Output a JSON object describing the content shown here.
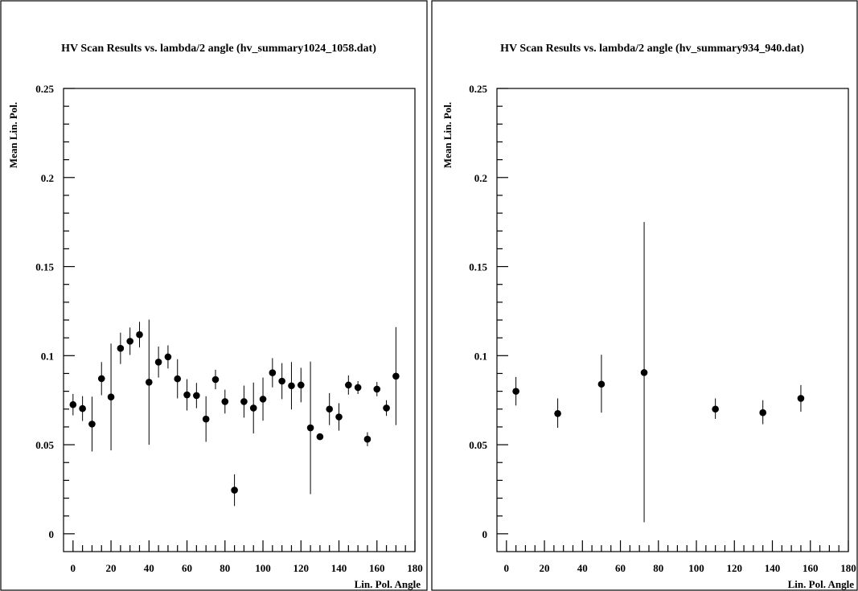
{
  "chart_data": [
    {
      "type": "scatter",
      "title": "HV Scan Results vs. lambda/2 angle (hv_summary1024_1058.dat)",
      "xlabel": "Lin. Pol. Angle",
      "ylabel": "Mean Lin. Pol.",
      "xlim": [
        -5,
        180
      ],
      "ylim": [
        -0.01,
        0.25
      ],
      "x_ticks": [
        0,
        20,
        40,
        60,
        80,
        100,
        120,
        140,
        160,
        180
      ],
      "y_ticks": [
        0,
        0.05,
        0.1,
        0.15,
        0.2,
        0.25
      ],
      "x_tick_labels": [
        "0",
        "20",
        "40",
        "60",
        "80",
        "100",
        "120",
        "140",
        "160",
        "180"
      ],
      "y_tick_labels": [
        "0",
        "0.05",
        "0.1",
        "0.15",
        "0.2",
        "0.25"
      ],
      "grid": false,
      "series": [
        {
          "x": [
            0,
            5,
            10,
            15,
            20,
            25,
            30,
            35,
            40,
            45,
            50,
            55,
            60,
            65,
            70,
            75,
            80,
            85,
            90,
            95,
            100,
            105,
            110,
            115,
            120,
            125,
            130,
            135,
            140,
            145,
            150,
            155,
            160,
            165,
            170
          ],
          "y": [
            0.0725,
            0.0703,
            0.0616,
            0.0871,
            0.0768,
            0.1041,
            0.1081,
            0.1118,
            0.0851,
            0.0964,
            0.0993,
            0.087,
            0.078,
            0.0776,
            0.0644,
            0.0866,
            0.0742,
            0.0245,
            0.0742,
            0.0706,
            0.0756,
            0.0904,
            0.0857,
            0.0831,
            0.0835,
            0.0595,
            0.0545,
            0.07,
            0.0656,
            0.0835,
            0.0821,
            0.0531,
            0.0812,
            0.0706,
            0.0885
          ],
          "y_low": [
            0.0665,
            0.0633,
            0.0462,
            0.0778,
            0.0468,
            0.0953,
            0.1004,
            0.1046,
            0.05,
            0.0877,
            0.0928,
            0.076,
            0.0692,
            0.0705,
            0.0516,
            0.0811,
            0.0675,
            0.0156,
            0.0652,
            0.0563,
            0.0635,
            0.0822,
            0.0756,
            0.0698,
            0.0738,
            0.0223,
            0.0531,
            0.061,
            0.0579,
            0.0781,
            0.0785,
            0.0492,
            0.0772,
            0.0662,
            0.061
          ],
          "y_high": [
            0.0785,
            0.0773,
            0.077,
            0.0964,
            0.1068,
            0.1129,
            0.1158,
            0.119,
            0.1202,
            0.1051,
            0.1058,
            0.098,
            0.0868,
            0.0847,
            0.0772,
            0.0921,
            0.0809,
            0.0334,
            0.0832,
            0.0849,
            0.0877,
            0.0986,
            0.0958,
            0.0964,
            0.0932,
            0.0967,
            0.0559,
            0.079,
            0.0733,
            0.0889,
            0.0857,
            0.057,
            0.0852,
            0.075,
            0.116
          ]
        }
      ]
    },
    {
      "type": "scatter",
      "title": "HV Scan Results vs. lambda/2 angle (hv_summary934_940.dat)",
      "xlabel": "Lin. Pol. Angle",
      "ylabel": "Mean Lin. Pol.",
      "xlim": [
        -5,
        180
      ],
      "ylim": [
        -0.01,
        0.25
      ],
      "x_ticks": [
        0,
        20,
        40,
        60,
        80,
        100,
        120,
        140,
        160,
        180
      ],
      "y_ticks": [
        0,
        0.05,
        0.1,
        0.15,
        0.2,
        0.25
      ],
      "x_tick_labels": [
        "0",
        "20",
        "40",
        "60",
        "80",
        "100",
        "120",
        "140",
        "160",
        "180"
      ],
      "y_tick_labels": [
        "0",
        "0.05",
        "0.1",
        "0.15",
        "0.2",
        "0.25"
      ],
      "grid": false,
      "series": [
        {
          "x": [
            5,
            27,
            50,
            72.5,
            110,
            135,
            155
          ],
          "y": [
            0.08,
            0.0675,
            0.084,
            0.0905,
            0.07,
            0.068,
            0.076
          ],
          "y_low": [
            0.072,
            0.0595,
            0.068,
            0.0065,
            0.0645,
            0.0615,
            0.0685
          ],
          "y_high": [
            0.088,
            0.076,
            0.1005,
            0.175,
            0.076,
            0.075,
            0.0835
          ]
        }
      ]
    }
  ]
}
